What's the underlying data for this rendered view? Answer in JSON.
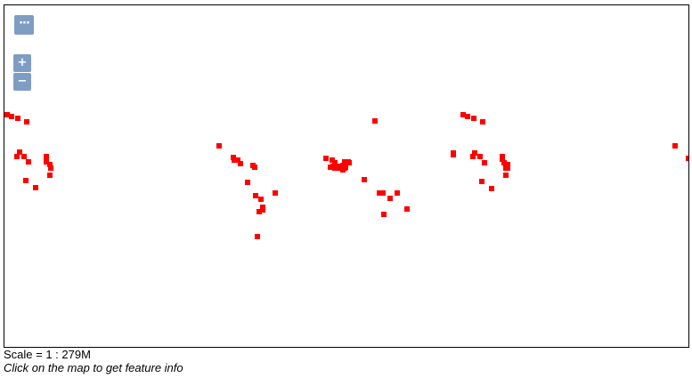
{
  "map": {
    "controls": {
      "menu_label": "···",
      "menu_icon": "more-horizontal-icon",
      "zoom_in_label": "+",
      "zoom_in_icon": "plus-icon",
      "zoom_out_label": "−",
      "zoom_out_icon": "minus-icon"
    },
    "feature_color": "#ff0000",
    "control_color": "#7f9dc3",
    "feature_type": "point-markers",
    "feature_count": 64
  },
  "status": {
    "scale_text": "Scale = 1 : 279M",
    "info_text": "Click on the map to get feature info"
  }
}
